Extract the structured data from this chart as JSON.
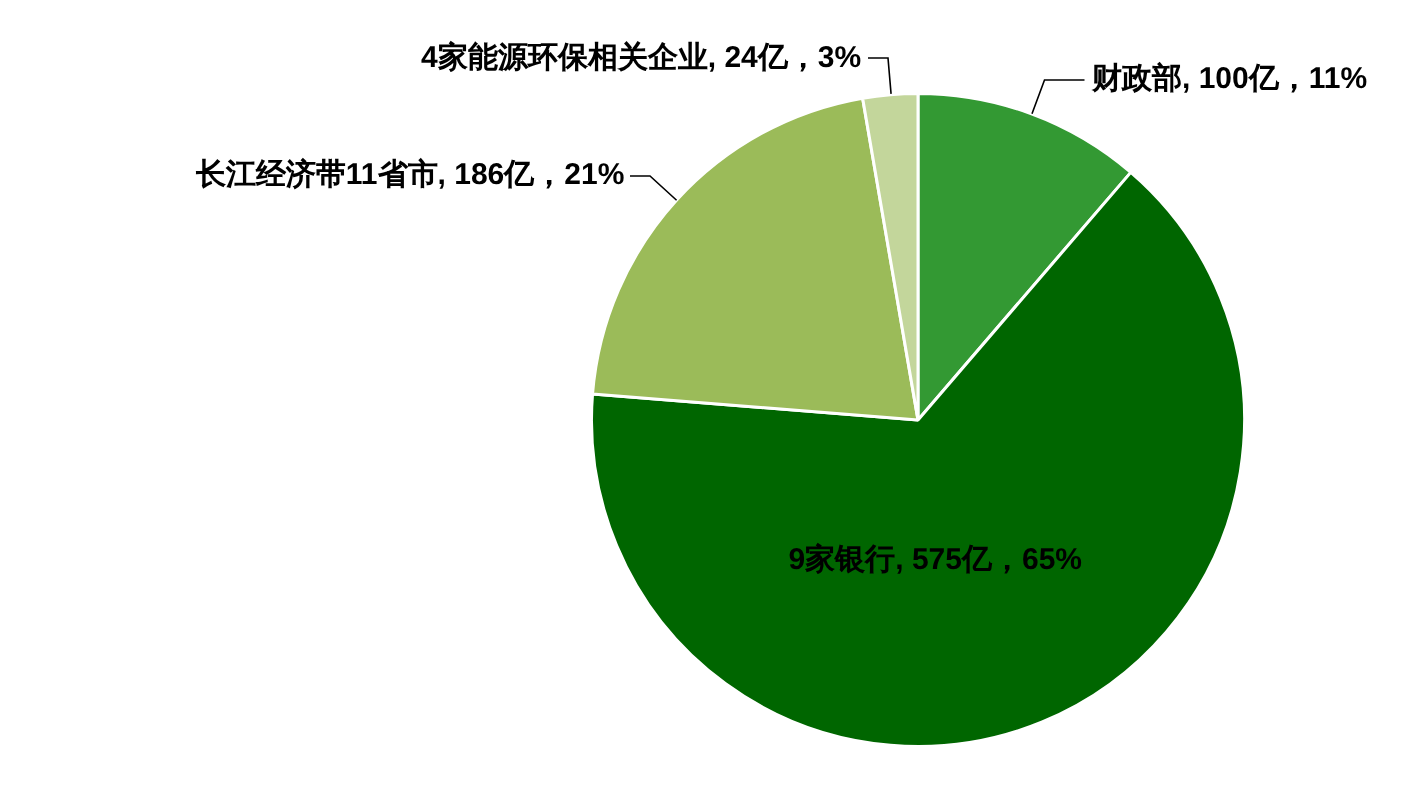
{
  "chart_data": {
    "type": "pie",
    "categories": [
      "财政部",
      "9家银行",
      "长江经济带11省市",
      "4家能源环保相关企业"
    ],
    "values": [
      100,
      575,
      186,
      24
    ],
    "value_labels": [
      "100亿，11%",
      "575亿，65%",
      "186亿，21%",
      "24亿，3%"
    ],
    "colors": [
      "#339933",
      "#006600",
      "#9bbb59",
      "#c3d69b"
    ],
    "legend": false
  }
}
